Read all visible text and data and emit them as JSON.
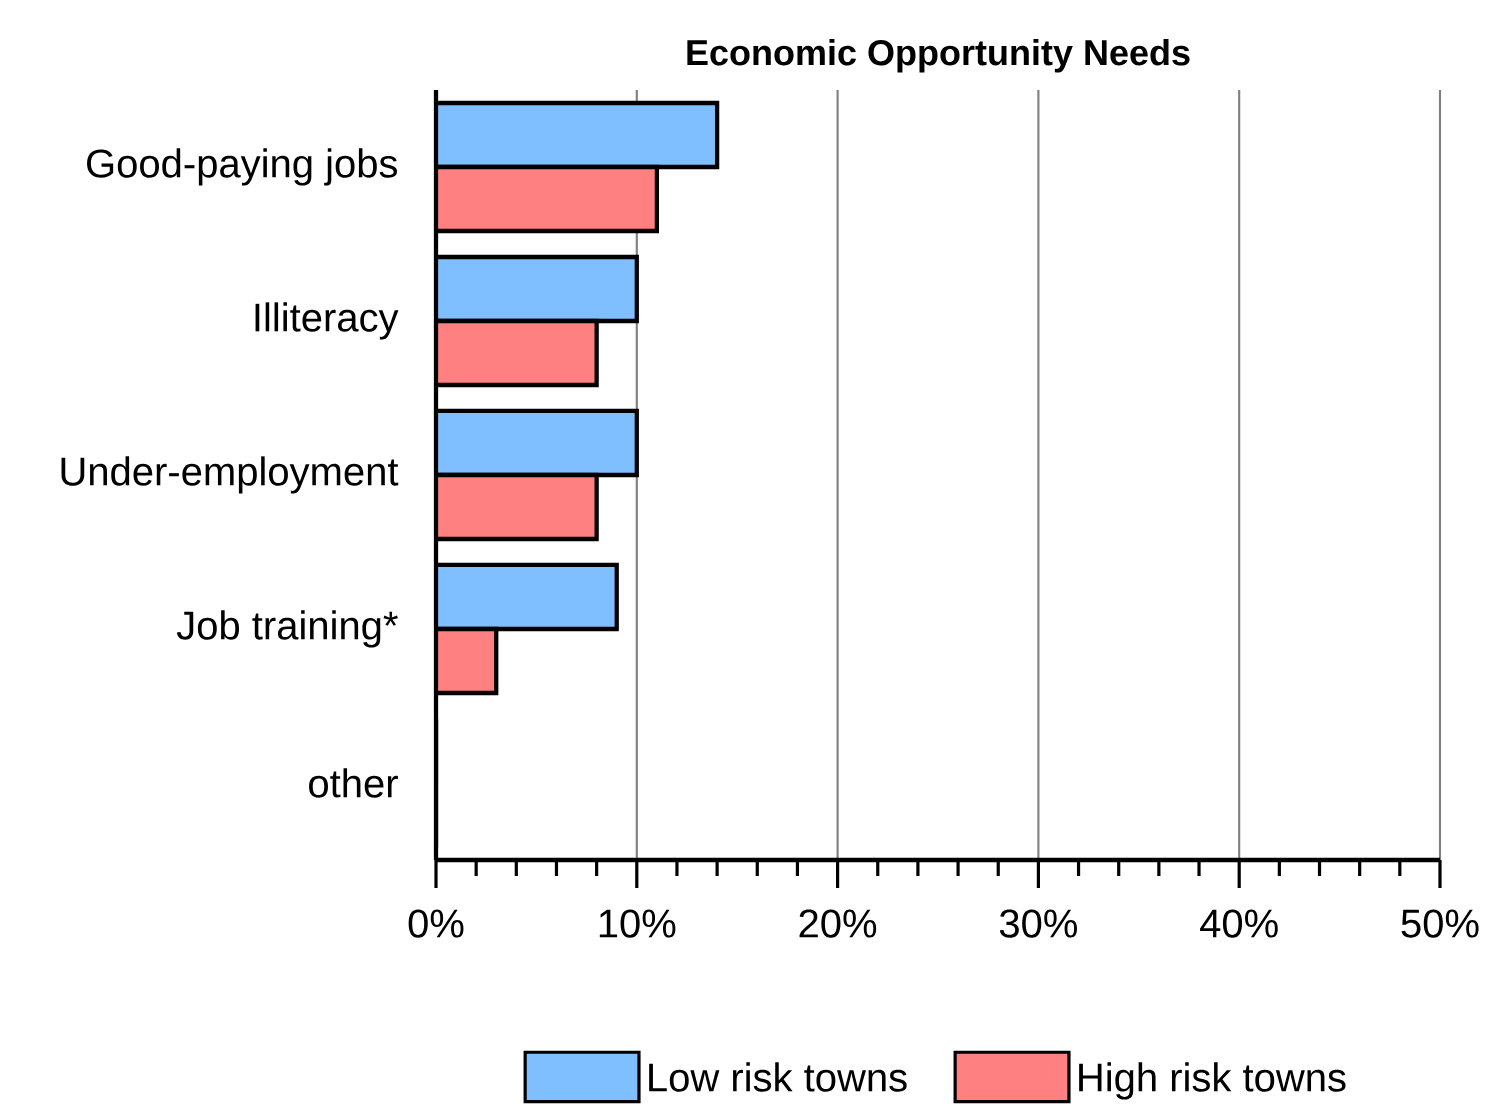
{
  "chart_data": {
    "type": "bar",
    "orientation": "horizontal",
    "title": "Economic Opportunity Needs",
    "categories": [
      "Good-paying jobs",
      "Illiteracy",
      "Under-employment",
      "Job training*",
      "other"
    ],
    "series": [
      {
        "name": "Low risk towns",
        "color": "#80bfff",
        "values": [
          14,
          10,
          10,
          9,
          0
        ]
      },
      {
        "name": "High risk towns",
        "color": "#ff8080",
        "values": [
          11,
          8,
          8,
          3,
          0
        ]
      }
    ],
    "xlim": [
      0,
      50
    ],
    "xticks": [
      {
        "value": 0,
        "label": "0%"
      },
      {
        "value": 10,
        "label": "10%"
      },
      {
        "value": 20,
        "label": "20%"
      },
      {
        "value": 30,
        "label": "30%"
      },
      {
        "value": 40,
        "label": "40%"
      },
      {
        "value": 50,
        "label": "50%"
      }
    ],
    "grid": "x",
    "legend": "bottom"
  }
}
